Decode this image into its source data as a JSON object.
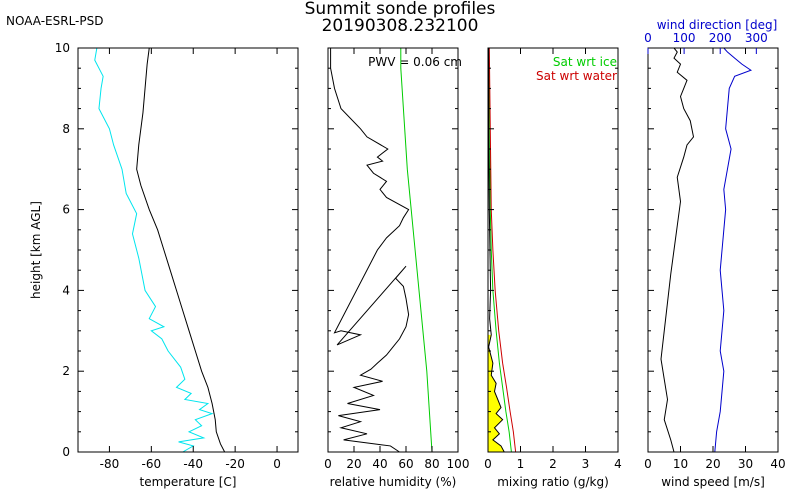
{
  "header": {
    "org": "NOAA-ESRL-PSD",
    "title": "Summit sonde profiles",
    "subtitle": "20190308.232100"
  },
  "colors": {
    "temperature": "#000000",
    "dewpoint": "#00e5ee",
    "sat_ice": "#00cc00",
    "sat_water": "#cc0000",
    "fill": "#ffff00",
    "wind_dir": "#0000cc",
    "axes": "#000000"
  },
  "chart_data": [
    {
      "type": "line",
      "name": "temperature",
      "ylabel": "height [km AGL]",
      "xlabel": "temperature [C]",
      "xlim": [
        -95,
        10
      ],
      "ylim": [
        0,
        10
      ],
      "xticks": [
        -80,
        -60,
        -40,
        -20,
        0
      ],
      "xtick_labels": [
        "-80",
        "-60",
        "-40",
        "-20",
        "0"
      ],
      "yticks": [
        0,
        2,
        4,
        6,
        8,
        10
      ],
      "ytick_labels": [
        "0",
        "2",
        "4",
        "6",
        "8",
        "10"
      ],
      "series": [
        {
          "color": "#000000",
          "x": [
            -25,
            -27,
            -29,
            -29.5,
            -31,
            -33,
            -36,
            -39,
            -42,
            -45,
            -48,
            -51,
            -54,
            -57,
            -61,
            -65,
            -67,
            -66,
            -64,
            -63,
            -62,
            -61
          ],
          "y": [
            0.0,
            0.2,
            0.5,
            0.8,
            1.2,
            1.6,
            2.0,
            2.5,
            3.0,
            3.5,
            4.0,
            4.5,
            5.0,
            5.5,
            6.0,
            6.6,
            7.0,
            7.6,
            8.4,
            9.0,
            9.6,
            10.0
          ]
        },
        {
          "color": "#00e5ee",
          "x": [
            -45,
            -40,
            -47,
            -35,
            -42,
            -36,
            -39,
            -31,
            -37,
            -33,
            -44,
            -41,
            -48,
            -44,
            -46,
            -52,
            -55,
            -60,
            -54,
            -61,
            -58,
            -63,
            -66,
            -69,
            -67,
            -72,
            -74,
            -78,
            -80,
            -85,
            -84,
            -83,
            -87,
            -86
          ],
          "y": [
            0.0,
            0.15,
            0.25,
            0.35,
            0.5,
            0.65,
            0.8,
            0.95,
            1.05,
            1.2,
            1.3,
            1.45,
            1.6,
            1.8,
            2.1,
            2.5,
            2.8,
            3.0,
            3.1,
            3.3,
            3.6,
            4.0,
            4.8,
            5.4,
            5.9,
            6.4,
            7.0,
            7.6,
            8.0,
            8.5,
            9.0,
            9.3,
            9.7,
            10.0
          ]
        }
      ]
    },
    {
      "type": "line",
      "name": "relative_humidity",
      "xlabel": "relative humidity (%)",
      "xlim": [
        0,
        100
      ],
      "ylim": [
        0,
        10
      ],
      "xticks": [
        0,
        20,
        40,
        60,
        80,
        100
      ],
      "xtick_labels": [
        "0",
        "20",
        "40",
        "60",
        "80",
        "100"
      ],
      "yticks": [
        0,
        2,
        4,
        6,
        8,
        10
      ],
      "annotation": "PWV = 0.06 cm",
      "series": [
        {
          "color": "#000000",
          "x": [
            55,
            48,
            12,
            30,
            10,
            25,
            8,
            40,
            15,
            35,
            20,
            42,
            25,
            33,
            38,
            45,
            50,
            55,
            60,
            62,
            60,
            58,
            52,
            60,
            7,
            25,
            10,
            5,
            38,
            45,
            55,
            58,
            62,
            45,
            40,
            45,
            35,
            30,
            42,
            38,
            46,
            30,
            25,
            10,
            5,
            2,
            2
          ],
          "y": [
            0.0,
            0.15,
            0.3,
            0.45,
            0.6,
            0.75,
            0.9,
            1.05,
            1.2,
            1.4,
            1.6,
            1.75,
            1.9,
            2.05,
            2.2,
            2.4,
            2.6,
            2.8,
            3.1,
            3.4,
            3.8,
            4.1,
            4.3,
            4.6,
            2.65,
            2.9,
            3.0,
            2.95,
            5.0,
            5.3,
            5.6,
            5.8,
            6.0,
            6.3,
            6.5,
            6.7,
            6.9,
            7.1,
            7.2,
            7.3,
            7.5,
            7.8,
            8.0,
            8.5,
            9.0,
            9.5,
            10.0
          ]
        },
        {
          "color": "#00cc00",
          "x": [
            80,
            78,
            76,
            73,
            70,
            67,
            64,
            61,
            59,
            57,
            56,
            56
          ],
          "y": [
            0.0,
            1.0,
            2.0,
            3.0,
            4.0,
            5.0,
            6.0,
            7.0,
            8.0,
            9.0,
            9.5,
            10.0
          ]
        }
      ]
    },
    {
      "type": "line",
      "name": "mixing_ratio",
      "xlabel": "mixing ratio (g/kg)",
      "xlim": [
        0,
        4
      ],
      "ylim": [
        0,
        10
      ],
      "xticks": [
        0,
        1,
        2,
        3,
        4
      ],
      "xtick_labels": [
        "0",
        "1",
        "2",
        "3",
        "4"
      ],
      "yticks": [
        0,
        2,
        4,
        6,
        8,
        10
      ],
      "legend": [
        "Sat wrt ice",
        "Sat wrt water"
      ],
      "series": [
        {
          "name": "Sat wrt ice",
          "color": "#00cc00",
          "x": [
            0.72,
            0.65,
            0.55,
            0.45,
            0.35,
            0.25,
            0.15,
            0.1,
            0.07,
            0.05,
            0.03
          ],
          "y": [
            0.0,
            0.5,
            1.0,
            1.6,
            2.2,
            3.0,
            4.0,
            5.0,
            6.0,
            8.0,
            10.0
          ]
        },
        {
          "name": "Sat wrt water",
          "color": "#cc0000",
          "x": [
            0.85,
            0.78,
            0.68,
            0.57,
            0.45,
            0.33,
            0.22,
            0.15,
            0.1,
            0.07,
            0.04
          ],
          "y": [
            0.0,
            0.5,
            1.0,
            1.6,
            2.2,
            3.0,
            4.0,
            5.0,
            6.0,
            8.0,
            10.0
          ]
        },
        {
          "name": "",
          "color": "#000000",
          "x": [
            0.5,
            0.4,
            0.15,
            0.35,
            0.2,
            0.45,
            0.25,
            0.4,
            0.3,
            0.2,
            0.25,
            0.1,
            0.15,
            0.02,
            0.1,
            0.05,
            0.08,
            0.06,
            0.04,
            0.02,
            0.02
          ],
          "y": [
            0.0,
            0.15,
            0.3,
            0.45,
            0.6,
            0.8,
            0.95,
            1.1,
            1.3,
            1.5,
            1.7,
            1.9,
            2.2,
            2.6,
            2.9,
            3.3,
            4.0,
            5.0,
            6.0,
            8.0,
            10.0
          ]
        }
      ]
    },
    {
      "type": "line",
      "name": "wind",
      "xlabel": "wind speed [m/s]",
      "top_label": "wind direction [deg]",
      "xlim": [
        0,
        40
      ],
      "xlim_top": [
        0,
        360
      ],
      "ylim": [
        0,
        10
      ],
      "xticks": [
        0,
        10,
        20,
        30,
        40
      ],
      "xtick_labels": [
        "0",
        "10",
        "20",
        "30",
        "40"
      ],
      "xticks_top": [
        0,
        100,
        200,
        300
      ],
      "xtick_labels_top": [
        "0",
        "100",
        "200",
        "300"
      ],
      "yticks": [
        0,
        2,
        4,
        6,
        8,
        10
      ],
      "series": [
        {
          "name": "wind speed",
          "color": "#000000",
          "x": [
            8,
            7,
            5,
            6,
            5,
            4,
            5,
            6,
            7,
            8,
            9,
            10,
            9,
            11,
            12,
            14,
            13,
            11,
            10,
            11,
            12,
            9,
            10,
            8,
            9,
            8
          ],
          "y": [
            0.0,
            0.3,
            0.8,
            1.3,
            1.8,
            2.3,
            3.0,
            3.7,
            4.4,
            5.0,
            5.6,
            6.2,
            6.8,
            7.3,
            7.6,
            7.8,
            8.2,
            8.5,
            8.8,
            9.0,
            9.2,
            9.4,
            9.6,
            9.75,
            9.9,
            10.0
          ]
        },
        {
          "name": "wind direction",
          "color": "#0000cc",
          "x": [
            185,
            190,
            200,
            205,
            210,
            200,
            205,
            210,
            205,
            200,
            205,
            210,
            215,
            210,
            220,
            230,
            215,
            220,
            225,
            240,
            285,
            260,
            240,
            220,
            210
          ],
          "y": [
            0.0,
            0.5,
            1.0,
            1.5,
            2.0,
            2.5,
            3.0,
            3.5,
            4.0,
            4.5,
            5.0,
            5.5,
            6.0,
            6.5,
            7.0,
            7.5,
            8.0,
            8.5,
            9.0,
            9.3,
            9.45,
            9.6,
            9.75,
            9.9,
            10.0
          ]
        }
      ]
    }
  ]
}
